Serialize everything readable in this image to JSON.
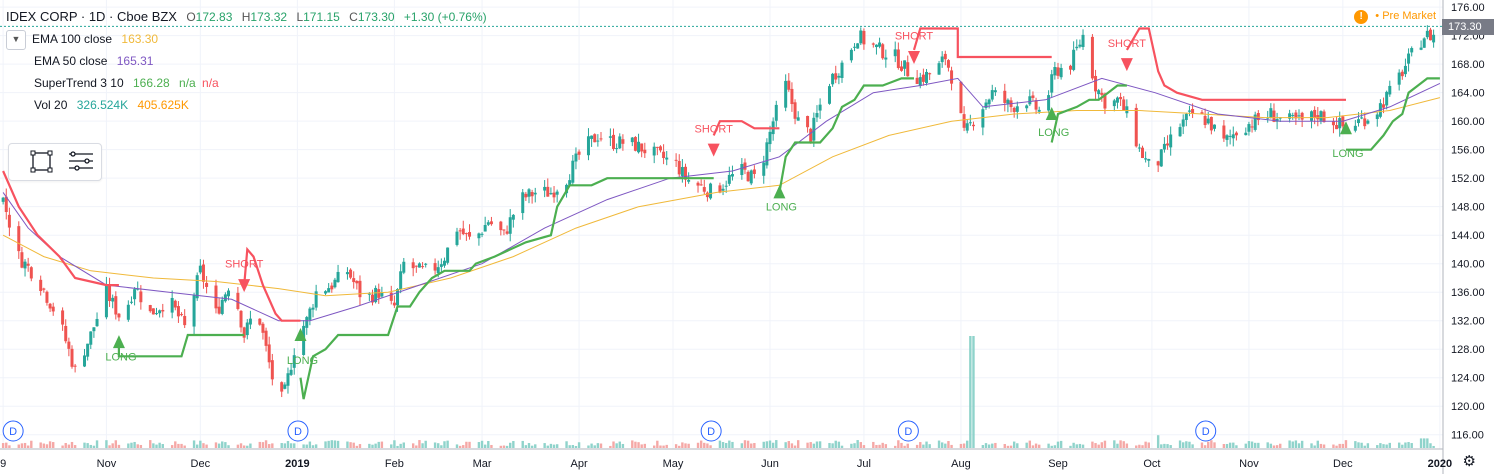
{
  "header": {
    "symbol": "IDEX CORP · 1D · Cboe BZX",
    "open_label": "O",
    "open": "172.83",
    "high_label": "H",
    "high": "173.32",
    "low_label": "L",
    "low": "171.15",
    "close_label": "C",
    "close": "173.30",
    "change": "+1.30 (+0.76%)"
  },
  "indicators": {
    "ema100": {
      "label": "EMA 100 close",
      "value": "163.30",
      "color": "#f0b93a"
    },
    "ema50": {
      "label": "EMA 50 close",
      "value": "165.31",
      "color": "#7e57c2"
    },
    "supertrend": {
      "label": "SuperTrend 3 10",
      "value": "166.28",
      "na1": "n/a",
      "na2": "n/a",
      "up_color": "#4caf50",
      "down_color": "#f7525f"
    },
    "volume": {
      "label": "Vol 20",
      "value": "326.524K",
      "ma": "405.625K"
    }
  },
  "premarket_label": "Pre Market",
  "premarket_icon": "!",
  "last_price": "173.30",
  "colors": {
    "up": "#26a69a",
    "down": "#ef5350",
    "grid": "#f0f3fa"
  },
  "chart_data": {
    "type": "candlestick",
    "ylim": [
      114,
      177
    ],
    "y_ticks": [
      "116.00",
      "120.00",
      "124.00",
      "128.00",
      "132.00",
      "136.00",
      "140.00",
      "144.00",
      "148.00",
      "152.00",
      "156.00",
      "160.00",
      "164.00",
      "168.00",
      "172.00",
      "176.00"
    ],
    "x_ticks": [
      {
        "label": "9",
        "day": -33
      },
      {
        "label": "Nov",
        "day": 0
      },
      {
        "label": "Dec",
        "day": 30
      },
      {
        "label": "2019",
        "day": 61
      },
      {
        "label": "Feb",
        "day": 92
      },
      {
        "label": "Mar",
        "day": 120
      },
      {
        "label": "Apr",
        "day": 151
      },
      {
        "label": "May",
        "day": 181
      },
      {
        "label": "Jun",
        "day": 212
      },
      {
        "label": "Jul",
        "day": 242
      },
      {
        "label": "Aug",
        "day": 273
      },
      {
        "label": "Sep",
        "day": 304
      },
      {
        "label": "Oct",
        "day": 334
      },
      {
        "label": "Nov",
        "day": 365
      },
      {
        "label": "Dec",
        "day": 395
      },
      {
        "label": "2020",
        "day": 426
      }
    ],
    "close_anchors": [
      [
        -33,
        149
      ],
      [
        -28,
        141
      ],
      [
        -22,
        138
      ],
      [
        -15,
        132
      ],
      [
        -10,
        125
      ],
      [
        -5,
        130
      ],
      [
        0,
        136
      ],
      [
        5,
        132
      ],
      [
        9,
        137
      ],
      [
        14,
        133
      ],
      [
        20,
        135
      ],
      [
        25,
        131
      ],
      [
        30,
        139
      ],
      [
        35,
        133
      ],
      [
        40,
        138
      ],
      [
        44,
        130
      ],
      [
        48,
        134
      ],
      [
        52,
        126
      ],
      [
        55,
        120
      ],
      [
        57,
        122
      ],
      [
        59,
        126
      ],
      [
        61,
        130
      ],
      [
        64,
        132
      ],
      [
        67,
        136
      ],
      [
        72,
        137
      ],
      [
        77,
        139
      ],
      [
        82,
        135
      ],
      [
        87,
        136
      ],
      [
        90,
        134
      ],
      [
        92,
        134
      ],
      [
        95,
        140
      ],
      [
        100,
        139
      ],
      [
        104,
        139
      ],
      [
        108,
        141
      ],
      [
        112,
        145
      ],
      [
        117,
        143
      ],
      [
        122,
        146
      ],
      [
        127,
        144
      ],
      [
        132,
        149
      ],
      [
        137,
        150
      ],
      [
        142,
        150
      ],
      [
        147,
        152
      ],
      [
        152,
        156
      ],
      [
        157,
        158
      ],
      [
        162,
        157
      ],
      [
        167,
        157
      ],
      [
        172,
        156
      ],
      [
        177,
        155
      ],
      [
        182,
        154
      ],
      [
        185,
        152
      ],
      [
        189,
        151
      ],
      [
        194,
        150
      ],
      [
        199,
        152
      ],
      [
        203,
        153
      ],
      [
        207,
        152
      ],
      [
        210,
        155
      ],
      [
        213,
        160
      ],
      [
        217,
        165
      ],
      [
        221,
        160
      ],
      [
        225,
        158
      ],
      [
        230,
        165
      ],
      [
        235,
        168
      ],
      [
        240,
        172
      ],
      [
        243,
        171
      ],
      [
        247,
        170
      ],
      [
        252,
        169
      ],
      [
        256,
        167
      ],
      [
        260,
        166
      ],
      [
        265,
        167
      ],
      [
        268,
        169
      ],
      [
        271,
        165
      ],
      [
        274,
        158
      ],
      [
        278,
        161
      ],
      [
        283,
        164
      ],
      [
        289,
        162
      ],
      [
        294,
        163
      ],
      [
        299,
        161
      ],
      [
        303,
        167
      ],
      [
        308,
        168
      ],
      [
        312,
        172
      ],
      [
        316,
        165
      ],
      [
        320,
        162
      ],
      [
        323,
        163
      ],
      [
        326,
        161
      ],
      [
        330,
        156
      ],
      [
        334,
        153
      ],
      [
        337,
        155
      ],
      [
        342,
        159
      ],
      [
        347,
        161
      ],
      [
        352,
        160
      ],
      [
        357,
        157
      ],
      [
        362,
        159
      ],
      [
        367,
        160
      ],
      [
        372,
        161
      ],
      [
        377,
        160
      ],
      [
        382,
        160
      ],
      [
        387,
        161
      ],
      [
        392,
        160
      ],
      [
        396,
        159
      ],
      [
        400,
        160
      ],
      [
        405,
        161
      ],
      [
        410,
        164
      ],
      [
        414,
        167
      ],
      [
        418,
        170
      ],
      [
        421,
        172
      ],
      [
        424,
        172
      ],
      [
        426,
        173.3
      ]
    ],
    "volume_spikes": [
      [
        277,
        7.0
      ],
      [
        335,
        0.8
      ],
      [
        421,
        0.6
      ]
    ],
    "supertrend_segments": [
      {
        "trend": "down",
        "points": [
          [
            -33,
            153
          ],
          [
            -28,
            148
          ],
          [
            -22,
            144
          ],
          [
            -15,
            141
          ],
          [
            -10,
            138
          ],
          [
            0,
            137
          ],
          [
            4,
            137
          ]
        ]
      },
      {
        "trend": "up",
        "points": [
          [
            4,
            129
          ],
          [
            4,
            127
          ],
          [
            15,
            127
          ],
          [
            24,
            127
          ],
          [
            26,
            130
          ],
          [
            44,
            130
          ]
        ]
      },
      {
        "trend": "down",
        "points": [
          [
            44,
            137
          ],
          [
            45,
            142
          ],
          [
            47,
            141
          ],
          [
            50,
            137
          ],
          [
            54,
            133
          ],
          [
            56,
            132
          ],
          [
            62,
            132
          ]
        ]
      },
      {
        "trend": "up",
        "points": [
          [
            62,
            124
          ],
          [
            63,
            121
          ],
          [
            66,
            127
          ],
          [
            70,
            128
          ],
          [
            74,
            130
          ],
          [
            82,
            130
          ],
          [
            90,
            130
          ],
          [
            93,
            134
          ],
          [
            97,
            134
          ],
          [
            100,
            136
          ],
          [
            104,
            138
          ],
          [
            108,
            139
          ],
          [
            116,
            139
          ],
          [
            118,
            140
          ],
          [
            124,
            141
          ],
          [
            134,
            143
          ],
          [
            142,
            144
          ],
          [
            144,
            148
          ],
          [
            148,
            151
          ],
          [
            155,
            151
          ],
          [
            160,
            152
          ],
          [
            172,
            152
          ],
          [
            180,
            152
          ],
          [
            190,
            152
          ],
          [
            194,
            152
          ]
        ]
      },
      {
        "trend": "down",
        "points": [
          [
            194,
            158
          ],
          [
            196,
            160
          ],
          [
            203,
            160
          ],
          [
            207,
            159
          ],
          [
            215,
            159
          ]
        ]
      },
      {
        "trend": "up",
        "points": [
          [
            215,
            150
          ],
          [
            217,
            155
          ],
          [
            220,
            157
          ],
          [
            225,
            157
          ],
          [
            228,
            157
          ],
          [
            232,
            159
          ],
          [
            235,
            162
          ],
          [
            239,
            163
          ],
          [
            242,
            165
          ],
          [
            248,
            165
          ],
          [
            254,
            166
          ],
          [
            258,
            166
          ]
        ]
      },
      {
        "trend": "down",
        "points": [
          [
            258,
            170
          ],
          [
            260,
            173
          ],
          [
            268,
            173
          ],
          [
            272,
            173
          ],
          [
            272,
            169
          ],
          [
            280,
            169
          ],
          [
            290,
            169
          ],
          [
            302,
            169
          ]
        ]
      },
      {
        "trend": "up",
        "points": [
          [
            302,
            157
          ],
          [
            304,
            161
          ],
          [
            310,
            162
          ],
          [
            314,
            163
          ],
          [
            317,
            163
          ],
          [
            320,
            164
          ],
          [
            323,
            165
          ],
          [
            326,
            165
          ]
        ]
      },
      {
        "trend": "down",
        "points": [
          [
            326,
            170
          ],
          [
            330,
            173
          ],
          [
            333,
            173
          ],
          [
            336,
            167
          ],
          [
            338,
            165
          ],
          [
            342,
            164
          ],
          [
            350,
            163
          ],
          [
            360,
            163
          ],
          [
            370,
            163
          ],
          [
            380,
            163
          ],
          [
            385,
            163
          ],
          [
            390,
            163
          ],
          [
            396,
            163
          ]
        ]
      },
      {
        "trend": "up",
        "points": [
          [
            396,
            156
          ],
          [
            398,
            156
          ],
          [
            404,
            156
          ],
          [
            408,
            158
          ],
          [
            411,
            160
          ],
          [
            414,
            161
          ],
          [
            416,
            164
          ],
          [
            419,
            165
          ],
          [
            422,
            166
          ],
          [
            426,
            166
          ]
        ]
      }
    ],
    "ema100": [
      [
        -33,
        144
      ],
      [
        -20,
        141
      ],
      [
        -5,
        139
      ],
      [
        15,
        138
      ],
      [
        35,
        137.5
      ],
      [
        55,
        136.5
      ],
      [
        70,
        135.5
      ],
      [
        90,
        136
      ],
      [
        110,
        138
      ],
      [
        130,
        141
      ],
      [
        150,
        145
      ],
      [
        170,
        148
      ],
      [
        195,
        150
      ],
      [
        215,
        151
      ],
      [
        232,
        155
      ],
      [
        250,
        158
      ],
      [
        270,
        160
      ],
      [
        290,
        161
      ],
      [
        310,
        161.5
      ],
      [
        330,
        161.5
      ],
      [
        350,
        161
      ],
      [
        370,
        160.5
      ],
      [
        390,
        160.5
      ],
      [
        410,
        161.5
      ],
      [
        426,
        163.3
      ]
    ],
    "ema50": [
      [
        -33,
        150
      ],
      [
        -25,
        145
      ],
      [
        -15,
        141
      ],
      [
        0,
        137
      ],
      [
        20,
        136
      ],
      [
        40,
        135
      ],
      [
        55,
        132
      ],
      [
        65,
        132
      ],
      [
        80,
        134
      ],
      [
        100,
        137
      ],
      [
        120,
        140
      ],
      [
        140,
        145
      ],
      [
        160,
        149
      ],
      [
        180,
        152
      ],
      [
        200,
        153
      ],
      [
        215,
        155
      ],
      [
        230,
        160
      ],
      [
        245,
        164
      ],
      [
        260,
        165
      ],
      [
        272,
        166
      ],
      [
        280,
        162
      ],
      [
        300,
        163
      ],
      [
        318,
        166
      ],
      [
        335,
        164
      ],
      [
        355,
        161
      ],
      [
        375,
        160
      ],
      [
        395,
        160
      ],
      [
        410,
        162
      ],
      [
        426,
        165.3
      ]
    ],
    "signals": [
      {
        "type": "LONG",
        "day": 4,
        "at": 129,
        "text_at": 127
      },
      {
        "type": "SHORT",
        "day": 44,
        "at": 137,
        "text_at": 140
      },
      {
        "type": "LONG",
        "day": 62,
        "at": 130,
        "text_at": 126.5
      },
      {
        "type": "SHORT",
        "day": 194,
        "at": 156,
        "text_at": 159
      },
      {
        "type": "LONG",
        "day": 215,
        "at": 150,
        "text_at": 148
      },
      {
        "type": "SHORT",
        "day": 258,
        "at": 169,
        "text_at": 172
      },
      {
        "type": "LONG",
        "day": 302,
        "at": 161,
        "text_at": 158.5
      },
      {
        "type": "SHORT",
        "day": 326,
        "at": 168,
        "text_at": 171
      },
      {
        "type": "LONG",
        "day": 396,
        "at": 159,
        "text_at": 155.5
      }
    ],
    "signal_labels": {
      "long": "LONG",
      "short": "SHORT"
    },
    "dividend_label": "D",
    "dividends": [
      -33,
      58,
      190,
      253,
      348
    ]
  }
}
